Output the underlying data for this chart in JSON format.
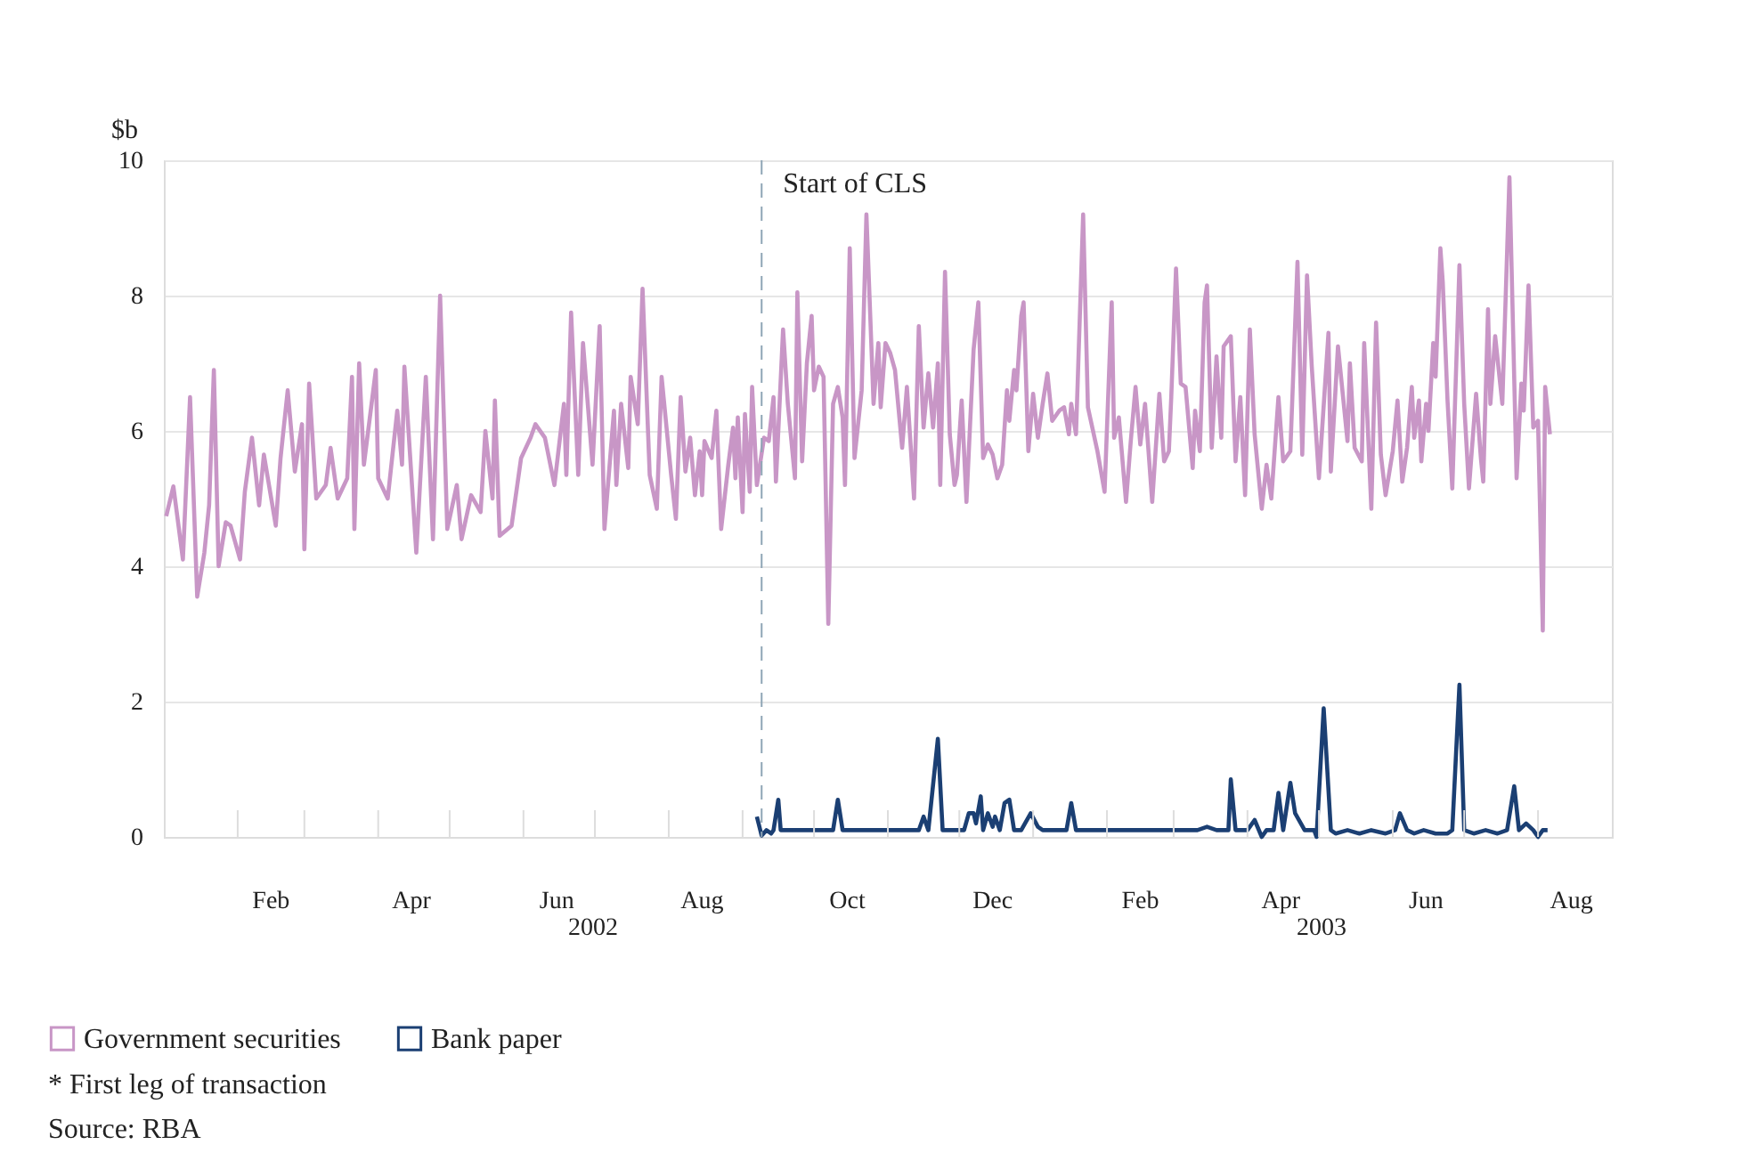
{
  "chart_data": {
    "type": "line",
    "ylabel": "$b",
    "xlim": [
      "2002-01-01",
      "2003-09-01"
    ],
    "ylim": [
      0,
      10
    ],
    "yticks": [
      0,
      2,
      4,
      6,
      8,
      10
    ],
    "xticks": [
      {
        "value": "2002-02-01",
        "label": null
      },
      {
        "value": "2002-02-15",
        "label": "Feb"
      },
      {
        "value": "2002-03-01",
        "label": null
      },
      {
        "value": "2002-04-01",
        "label": null
      },
      {
        "value": "2002-04-15",
        "label": "Apr"
      },
      {
        "value": "2002-05-01",
        "label": null
      },
      {
        "value": "2002-06-01",
        "label": null
      },
      {
        "value": "2002-06-15",
        "label": "Jun"
      },
      {
        "value": "2002-07-01",
        "label": null
      },
      {
        "value": "2002-08-01",
        "label": null
      },
      {
        "value": "2002-08-15",
        "label": "Aug"
      },
      {
        "value": "2002-09-01",
        "label": null
      },
      {
        "value": "2002-10-01",
        "label": null
      },
      {
        "value": "2002-10-15",
        "label": "Oct"
      },
      {
        "value": "2002-11-01",
        "label": null
      },
      {
        "value": "2002-12-01",
        "label": null
      },
      {
        "value": "2002-12-15",
        "label": "Dec"
      },
      {
        "value": "2003-01-01",
        "label": null
      },
      {
        "value": "2003-02-01",
        "label": null
      },
      {
        "value": "2003-02-15",
        "label": "Feb"
      },
      {
        "value": "2003-03-01",
        "label": null
      },
      {
        "value": "2003-04-01",
        "label": null
      },
      {
        "value": "2003-04-15",
        "label": "Apr"
      },
      {
        "value": "2003-05-01",
        "label": null
      },
      {
        "value": "2003-06-01",
        "label": null
      },
      {
        "value": "2003-06-15",
        "label": "Jun"
      },
      {
        "value": "2003-07-01",
        "label": null
      },
      {
        "value": "2003-08-01",
        "label": null
      },
      {
        "value": "2003-08-15",
        "label": "Aug"
      }
    ],
    "grid": "y",
    "legend": "bottom",
    "marker": "none",
    "line_style": "solid",
    "series": [
      {
        "name": "Government securities",
        "color": "#c896c6",
        "x": [
          "2002-01-02",
          "2002-01-05",
          "2002-01-09",
          "2002-01-12",
          "2002-01-15",
          "2002-01-18",
          "2002-01-20",
          "2002-01-22",
          "2002-01-24",
          "2002-01-27",
          "2002-01-29",
          "2002-02-02",
          "2002-02-04",
          "2002-02-07",
          "2002-02-10",
          "2002-02-12",
          "2002-02-17",
          "2002-02-19",
          "2002-02-22",
          "2002-02-25",
          "2002-02-28",
          "2002-03-01",
          "2002-03-03",
          "2002-03-06",
          "2002-03-10",
          "2002-03-12",
          "2002-03-15",
          "2002-03-19",
          "2002-03-21",
          "2002-03-22",
          "2002-03-24",
          "2002-03-26",
          "2002-03-31",
          "2002-04-01",
          "2002-04-05",
          "2002-04-09",
          "2002-04-11",
          "2002-04-12",
          "2002-04-17",
          "2002-04-21",
          "2002-04-24",
          "2002-04-27",
          "2002-04-30",
          "2002-05-04",
          "2002-05-06",
          "2002-05-10",
          "2002-05-14",
          "2002-05-16",
          "2002-05-19",
          "2002-05-20",
          "2002-05-22",
          "2002-05-27",
          "2002-05-31",
          "2002-06-04",
          "2002-06-06",
          "2002-06-10",
          "2002-06-14",
          "2002-06-18",
          "2002-06-19",
          "2002-06-21",
          "2002-06-24",
          "2002-06-26",
          "2002-06-30",
          "2002-07-03",
          "2002-07-05",
          "2002-07-09",
          "2002-07-10",
          "2002-07-12",
          "2002-07-15",
          "2002-07-16",
          "2002-07-19",
          "2002-07-21",
          "2002-07-24",
          "2002-07-27",
          "2002-07-29",
          "2002-08-02",
          "2002-08-04",
          "2002-08-06",
          "2002-08-08",
          "2002-08-10",
          "2002-08-12",
          "2002-08-14",
          "2002-08-15",
          "2002-08-16",
          "2002-08-19",
          "2002-08-21",
          "2002-08-23",
          "2002-08-26",
          "2002-08-28",
          "2002-08-29",
          "2002-08-30",
          "2002-09-01",
          "2002-09-02",
          "2002-09-04",
          "2002-09-05",
          "2002-09-07",
          "2002-09-10",
          "2002-09-12",
          "2002-09-14",
          "2002-09-15",
          "2002-09-18",
          "2002-09-20",
          "2002-09-23",
          "2002-09-24",
          "2002-09-26",
          "2002-09-28",
          "2002-09-30",
          "2002-10-01",
          "2002-10-03",
          "2002-10-05",
          "2002-10-07",
          "2002-10-09",
          "2002-10-11",
          "2002-10-13",
          "2002-10-14",
          "2002-10-16",
          "2002-10-18",
          "2002-10-21",
          "2002-10-23",
          "2002-10-26",
          "2002-10-28",
          "2002-10-29",
          "2002-10-31",
          "2002-11-02",
          "2002-11-04",
          "2002-11-07",
          "2002-11-09",
          "2002-11-12",
          "2002-11-14",
          "2002-11-16",
          "2002-11-18",
          "2002-11-20",
          "2002-11-22",
          "2002-11-23",
          "2002-11-25",
          "2002-11-27",
          "2002-11-29",
          "2002-11-30",
          "2002-12-02",
          "2002-12-04",
          "2002-12-07",
          "2002-12-09",
          "2002-12-11",
          "2002-12-13",
          "2002-12-15",
          "2002-12-17",
          "2002-12-19",
          "2002-12-21",
          "2002-12-22",
          "2002-12-24",
          "2002-12-25",
          "2002-12-27",
          "2002-12-28",
          "2002-12-30",
          "2003-01-01",
          "2003-01-03",
          "2003-01-05",
          "2003-01-07",
          "2003-01-09",
          "2003-01-12",
          "2003-01-14",
          "2003-01-16",
          "2003-01-17",
          "2003-01-19",
          "2003-01-22",
          "2003-01-24",
          "2003-01-28",
          "2003-01-31",
          "2003-02-03",
          "2003-02-04",
          "2003-02-06",
          "2003-02-09",
          "2003-02-11",
          "2003-02-13",
          "2003-02-15",
          "2003-02-17",
          "2003-02-20",
          "2003-02-23",
          "2003-02-25",
          "2003-02-27",
          "2003-02-28",
          "2003-03-02",
          "2003-03-04",
          "2003-03-06",
          "2003-03-09",
          "2003-03-10",
          "2003-03-12",
          "2003-03-14",
          "2003-03-15",
          "2003-03-17",
          "2003-03-19",
          "2003-03-21",
          "2003-03-22",
          "2003-03-25",
          "2003-03-27",
          "2003-03-29",
          "2003-03-31",
          "2003-04-02",
          "2003-04-04",
          "2003-04-07",
          "2003-04-09",
          "2003-04-11",
          "2003-04-14",
          "2003-04-16",
          "2003-04-19",
          "2003-04-22",
          "2003-04-24",
          "2003-04-26",
          "2003-04-28",
          "2003-05-01",
          "2003-05-05",
          "2003-05-06",
          "2003-05-09",
          "2003-05-13",
          "2003-05-14",
          "2003-05-16",
          "2003-05-19",
          "2003-05-20",
          "2003-05-23",
          "2003-05-25",
          "2003-05-27",
          "2003-05-29",
          "2003-06-01",
          "2003-06-03",
          "2003-06-05",
          "2003-06-07",
          "2003-06-09",
          "2003-06-10",
          "2003-06-12",
          "2003-06-13",
          "2003-06-15",
          "2003-06-16",
          "2003-06-18",
          "2003-06-19",
          "2003-06-21",
          "2003-06-22",
          "2003-06-24",
          "2003-06-26",
          "2003-06-29",
          "2003-07-01",
          "2003-07-03",
          "2003-07-06",
          "2003-07-08",
          "2003-07-09",
          "2003-07-11",
          "2003-07-12",
          "2003-07-14",
          "2003-07-17",
          "2003-07-20",
          "2003-07-23",
          "2003-07-25",
          "2003-07-26",
          "2003-07-28",
          "2003-07-30",
          "2003-08-01",
          "2003-08-03",
          "2003-08-04",
          "2003-08-06"
        ],
        "values": [
          4.74,
          5.18,
          4.1,
          6.5,
          3.55,
          4.2,
          4.9,
          6.9,
          4.0,
          4.65,
          4.6,
          4.1,
          5.1,
          5.9,
          4.9,
          5.65,
          4.6,
          5.6,
          6.6,
          5.4,
          6.1,
          4.25,
          6.7,
          5.0,
          5.2,
          5.75,
          5.0,
          5.3,
          6.8,
          4.55,
          7.0,
          5.5,
          6.9,
          5.3,
          5.0,
          6.3,
          5.5,
          6.95,
          4.2,
          6.8,
          4.4,
          8.0,
          4.55,
          5.2,
          4.4,
          5.05,
          4.8,
          6.0,
          5.0,
          6.45,
          4.45,
          4.6,
          5.6,
          5.9,
          6.1,
          5.9,
          5.2,
          6.4,
          5.35,
          7.75,
          5.35,
          7.3,
          5.5,
          7.55,
          4.55,
          6.3,
          5.2,
          6.4,
          5.45,
          6.8,
          6.1,
          8.1,
          5.35,
          4.85,
          6.8,
          5.35,
          4.7,
          6.5,
          5.4,
          5.9,
          5.05,
          5.7,
          5.05,
          5.85,
          5.6,
          6.3,
          4.55,
          5.5,
          6.05,
          5.3,
          6.2,
          4.8,
          6.25,
          5.1,
          6.65,
          5.2,
          5.9,
          5.85,
          6.5,
          5.25,
          7.5,
          6.4,
          5.3,
          8.05,
          5.55,
          7.0,
          7.7,
          6.6,
          6.95,
          6.8,
          3.15,
          6.4,
          6.65,
          6.2,
          5.2,
          8.7,
          5.6,
          6.6,
          9.2,
          6.4,
          7.3,
          6.35,
          7.3,
          7.15,
          6.9,
          5.75,
          6.65,
          5.0,
          7.55,
          6.05,
          6.85,
          6.05,
          7.0,
          5.2,
          8.35,
          5.95,
          5.2,
          5.35,
          6.45,
          4.95,
          7.2,
          7.9,
          5.6,
          5.8,
          5.65,
          5.3,
          5.5,
          6.6,
          6.15,
          6.9,
          6.6,
          7.7,
          7.9,
          5.7,
          6.55,
          5.9,
          6.4,
          6.85,
          6.15,
          6.3,
          6.35,
          5.95,
          6.4,
          5.95,
          9.2,
          6.35,
          5.7,
          5.1,
          7.9,
          5.9,
          6.2,
          4.95,
          5.85,
          6.65,
          5.8,
          6.4,
          4.95,
          6.55,
          5.55,
          5.7,
          6.5,
          8.4,
          6.7,
          6.65,
          5.45,
          6.3,
          5.7,
          7.9,
          8.15,
          5.75,
          7.1,
          5.9,
          7.25,
          7.4,
          5.55,
          6.5,
          5.05,
          7.5,
          5.95,
          4.85,
          5.5,
          5.0,
          6.5,
          5.55,
          5.7,
          8.5,
          5.65,
          8.3,
          6.95,
          5.3,
          7.45,
          5.4,
          7.25,
          5.85,
          7.0,
          5.75,
          5.55,
          7.3,
          4.85,
          7.6,
          5.65,
          5.05,
          5.7,
          6.45,
          5.25,
          5.75,
          6.65,
          5.9,
          6.45,
          5.55,
          6.4,
          6.0,
          7.3,
          6.8,
          8.7,
          8.2,
          6.45,
          5.15,
          8.45,
          6.4,
          5.15,
          6.55,
          5.6,
          5.25,
          7.8,
          6.4,
          7.4,
          6.4,
          9.75,
          5.3,
          6.7,
          6.3,
          8.15,
          6.05,
          6.15,
          3.05,
          6.65,
          5.95
        ]
      },
      {
        "name": "Bank paper",
        "color": "#1b3f73",
        "x": [
          "2002-09-07",
          "2002-09-09",
          "2002-09-11",
          "2002-09-13",
          "2002-09-14",
          "2002-09-16",
          "2002-09-17",
          "2002-10-08",
          "2002-10-09",
          "2002-10-11",
          "2002-10-13",
          "2002-11-14",
          "2002-11-16",
          "2002-11-18",
          "2002-11-22",
          "2002-11-24",
          "2002-12-03",
          "2002-12-05",
          "2002-12-07",
          "2002-12-08",
          "2002-12-10",
          "2002-12-11",
          "2002-12-13",
          "2002-12-15",
          "2002-12-16",
          "2002-12-18",
          "2002-12-20",
          "2002-12-22",
          "2002-12-24",
          "2002-12-27",
          "2002-12-31",
          "2003-01-03",
          "2003-01-05",
          "2003-01-15",
          "2003-01-17",
          "2003-01-19",
          "2003-03-01",
          "2003-03-11",
          "2003-03-15",
          "2003-03-19",
          "2003-03-24",
          "2003-03-25",
          "2003-03-27",
          "2003-04-01",
          "2003-04-04",
          "2003-04-07",
          "2003-04-09",
          "2003-04-12",
          "2003-04-14",
          "2003-04-16",
          "2003-04-19",
          "2003-04-21",
          "2003-04-25",
          "2003-04-29",
          "2003-04-30",
          "2003-05-03",
          "2003-05-06",
          "2003-05-08",
          "2003-05-13",
          "2003-05-18",
          "2003-05-23",
          "2003-05-29",
          "2003-06-02",
          "2003-06-04",
          "2003-06-07",
          "2003-06-10",
          "2003-06-14",
          "2003-06-19",
          "2003-06-24",
          "2003-06-26",
          "2003-06-29",
          "2003-07-01",
          "2003-07-05",
          "2003-07-10",
          "2003-07-15",
          "2003-07-19",
          "2003-07-22",
          "2003-07-24",
          "2003-07-27",
          "2003-07-30",
          "2003-08-01",
          "2003-08-03",
          "2003-08-05"
        ],
        "values": [
          0.3,
          0.02,
          0.1,
          0.05,
          0.1,
          0.55,
          0.1,
          0.1,
          0.1,
          0.55,
          0.1,
          0.1,
          0.3,
          0.1,
          1.45,
          0.1,
          0.1,
          0.35,
          0.35,
          0.2,
          0.6,
          0.1,
          0.35,
          0.15,
          0.3,
          0.1,
          0.5,
          0.55,
          0.1,
          0.1,
          0.35,
          0.15,
          0.1,
          0.1,
          0.5,
          0.1,
          0.1,
          0.1,
          0.15,
          0.1,
          0.1,
          0.85,
          0.1,
          0.1,
          0.25,
          0.0,
          0.1,
          0.1,
          0.65,
          0.1,
          0.8,
          0.35,
          0.1,
          0.1,
          0.0,
          1.9,
          0.1,
          0.05,
          0.1,
          0.05,
          0.1,
          0.05,
          0.1,
          0.35,
          0.1,
          0.05,
          0.1,
          0.05,
          0.05,
          0.1,
          2.25,
          0.1,
          0.05,
          0.1,
          0.05,
          0.1,
          0.75,
          0.1,
          0.2,
          0.1,
          0.0,
          0.1,
          0.1
        ]
      }
    ],
    "ref_lines": [
      {
        "axis": "x",
        "value": "2002-09-09",
        "label": "Start of CLS",
        "color": "#8fa5b5",
        "line_style": "dashed"
      }
    ],
    "annotations": [
      "2002",
      "2003",
      "* First leg of transaction",
      "Source:   RBA"
    ]
  }
}
